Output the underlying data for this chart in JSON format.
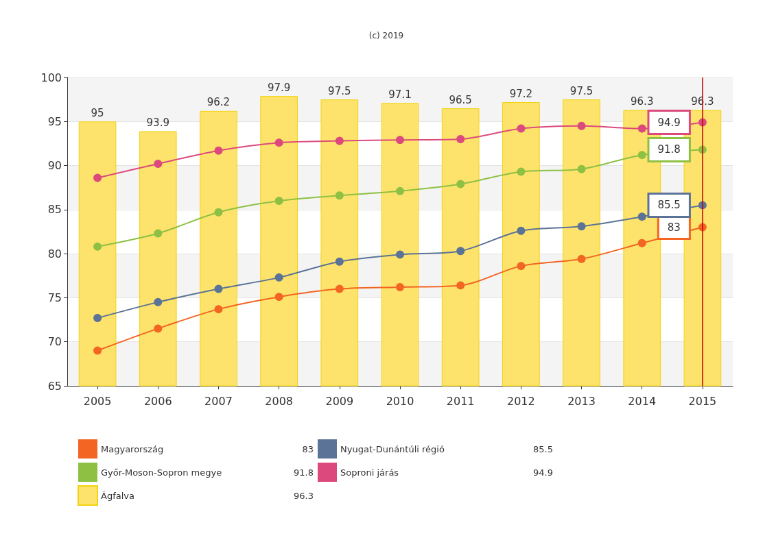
{
  "chart_data": {
    "type": "line",
    "annotations": [
      "(c) 2019"
    ],
    "categories": [
      "2005",
      "2006",
      "2007",
      "2008",
      "2009",
      "2010",
      "2011",
      "2012",
      "2013",
      "2014",
      "2015"
    ],
    "series": [
      {
        "name": "Magyarország",
        "color": "#f26522",
        "values": [
          69.0,
          71.5,
          73.7,
          75.1,
          76.0,
          76.2,
          76.4,
          78.6,
          79.4,
          81.2,
          83
        ],
        "value_labels": [
          null,
          null,
          null,
          null,
          null,
          null,
          null,
          null,
          null,
          null,
          "83"
        ]
      },
      {
        "name": "Nyugat-Dunántúli régió",
        "color": "#5b7396",
        "values": [
          72.7,
          74.5,
          76.0,
          77.3,
          79.1,
          79.9,
          80.3,
          82.6,
          83.1,
          84.2,
          85.5
        ],
        "value_labels": [
          null,
          null,
          null,
          null,
          null,
          null,
          null,
          null,
          null,
          null,
          "85.5"
        ]
      },
      {
        "name": "Győr-Moson-Sopron megye",
        "color": "#8dc043",
        "values": [
          80.8,
          82.3,
          84.7,
          86.0,
          86.6,
          87.1,
          87.9,
          89.3,
          89.6,
          91.2,
          91.8
        ],
        "value_labels": [
          null,
          null,
          null,
          null,
          null,
          null,
          null,
          null,
          null,
          null,
          "91.8"
        ]
      },
      {
        "name": "Soproni járás",
        "color": "#dc4a7d",
        "values": [
          88.6,
          90.2,
          91.7,
          92.6,
          92.8,
          92.9,
          93.0,
          94.2,
          94.5,
          94.2,
          94.9
        ],
        "value_labels": [
          null,
          null,
          null,
          null,
          null,
          null,
          null,
          null,
          null,
          null,
          "94.9"
        ]
      },
      {
        "name": "Ágfalva",
        "type": "bar",
        "color": "#fde36b",
        "values": [
          95,
          93.9,
          96.2,
          97.9,
          97.5,
          97.1,
          96.5,
          97.2,
          97.5,
          96.3,
          96.3
        ],
        "value_labels": [
          "95",
          "93.9",
          "96.2",
          "97.9",
          "97.5",
          "97.1",
          "96.5",
          "97.2",
          "97.5",
          "96.3",
          "96.3"
        ]
      }
    ],
    "ref_lines": [
      {
        "axis": "x",
        "value": "2015",
        "color": "#c00000"
      }
    ],
    "ylim": [
      65,
      100
    ],
    "yticks": [
      65,
      70,
      75,
      80,
      85,
      90,
      95,
      100
    ],
    "grid": "y",
    "legend": "bottom",
    "marker": "circle",
    "line_style": "solid"
  }
}
